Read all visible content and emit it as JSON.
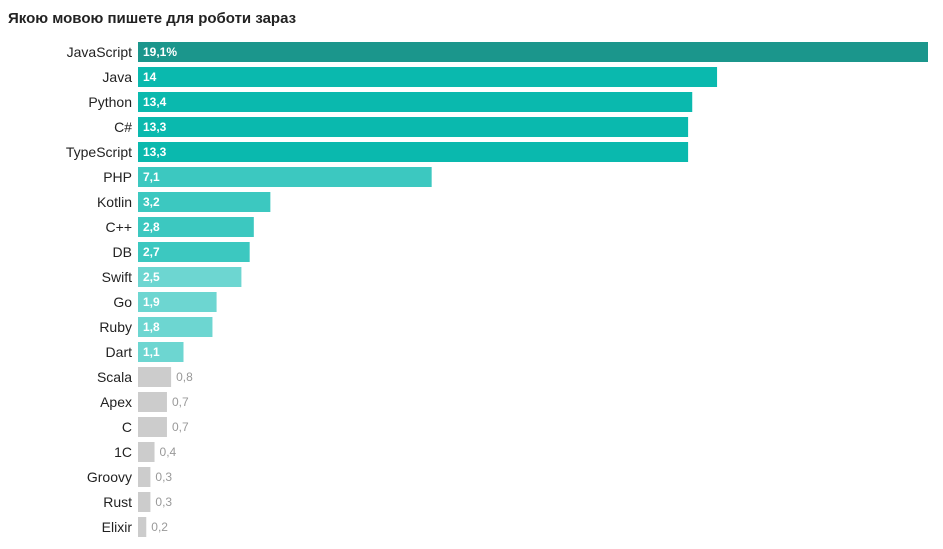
{
  "chart_data": {
    "type": "bar",
    "orientation": "horizontal",
    "title": "Якою мовою пишете для роботи зараз",
    "xlabel": "",
    "ylabel": "",
    "grid": false,
    "xlim": [
      0,
      19.1
    ],
    "categories": [
      "JavaScript",
      "Java",
      "Python",
      "C#",
      "TypeScript",
      "PHP",
      "Kotlin",
      "C++",
      "DB",
      "Swift",
      "Go",
      "Ruby",
      "Dart",
      "Scala",
      "Apex",
      "C",
      "1C",
      "Groovy",
      "Rust",
      "Elixir"
    ],
    "values": [
      19.1,
      14,
      13.4,
      13.3,
      13.3,
      7.1,
      3.2,
      2.8,
      2.7,
      2.5,
      1.9,
      1.8,
      1.1,
      0.8,
      0.7,
      0.7,
      0.4,
      0.3,
      0.3,
      0.2
    ],
    "value_labels": [
      "19,1%",
      "14",
      "13,4",
      "13,3",
      "13,3",
      "7,1",
      "3,2",
      "2,8",
      "2,7",
      "2,5",
      "1,9",
      "1,8",
      "1,1",
      "0,8",
      "0,7",
      "0,7",
      "0,4",
      "0,3",
      "0,3",
      "0,2"
    ],
    "colors": [
      "#1b968c",
      "#0ab9ae",
      "#0ab9ae",
      "#0ab9ae",
      "#0ab9ae",
      "#3cc8c0",
      "#3cc8c0",
      "#3cc8c0",
      "#3cc8c0",
      "#6dd6d1",
      "#6dd6d1",
      "#6dd6d1",
      "#6dd6d1",
      "#cccccc",
      "#cccccc",
      "#cccccc",
      "#cccccc",
      "#cccccc",
      "#cccccc",
      "#cccccc"
    ]
  }
}
